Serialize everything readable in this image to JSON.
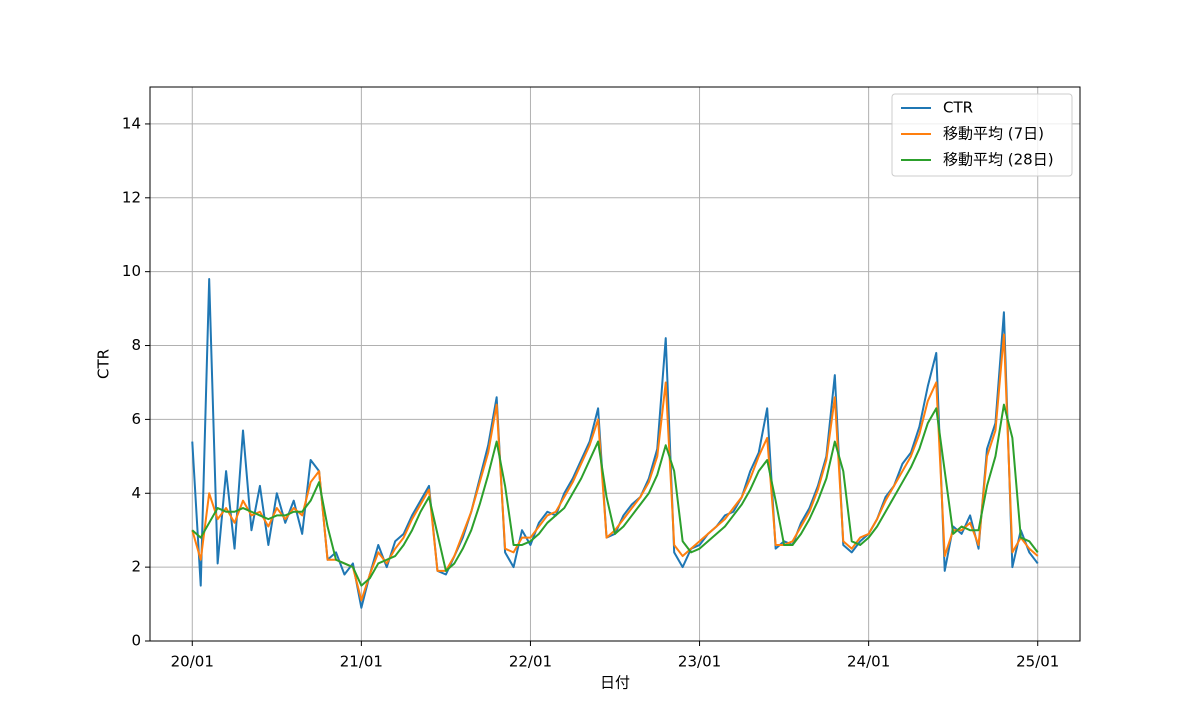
{
  "chart_data": {
    "type": "line",
    "xlabel": "日付",
    "ylabel": "CTR",
    "xlim": [
      2019.75,
      2025.25
    ],
    "ylim": [
      0,
      15
    ],
    "xticks": [
      {
        "value": 2020,
        "label": "20/01"
      },
      {
        "value": 2021,
        "label": "21/01"
      },
      {
        "value": 2022,
        "label": "22/01"
      },
      {
        "value": 2023,
        "label": "23/01"
      },
      {
        "value": 2024,
        "label": "24/01"
      },
      {
        "value": 2025,
        "label": "25/01"
      }
    ],
    "yticks": [
      0,
      2,
      4,
      6,
      8,
      10,
      12,
      14
    ],
    "grid": true,
    "legend": "upper right",
    "x": [
      2020.0,
      2020.05,
      2020.1,
      2020.15,
      2020.2,
      2020.25,
      2020.3,
      2020.35,
      2020.4,
      2020.45,
      2020.5,
      2020.55,
      2020.6,
      2020.65,
      2020.7,
      2020.75,
      2020.8,
      2020.85,
      2020.9,
      2020.95,
      2021.0,
      2021.05,
      2021.1,
      2021.15,
      2021.2,
      2021.25,
      2021.3,
      2021.35,
      2021.4,
      2021.45,
      2021.5,
      2021.55,
      2021.6,
      2021.65,
      2021.7,
      2021.75,
      2021.8,
      2021.85,
      2021.9,
      2021.95,
      2022.0,
      2022.05,
      2022.1,
      2022.15,
      2022.2,
      2022.25,
      2022.3,
      2022.35,
      2022.4,
      2022.45,
      2022.5,
      2022.55,
      2022.6,
      2022.65,
      2022.7,
      2022.75,
      2022.8,
      2022.85,
      2022.9,
      2022.95,
      2023.0,
      2023.05,
      2023.1,
      2023.15,
      2023.2,
      2023.25,
      2023.3,
      2023.35,
      2023.4,
      2023.45,
      2023.5,
      2023.55,
      2023.6,
      2023.65,
      2023.7,
      2023.75,
      2023.8,
      2023.85,
      2023.9,
      2023.95,
      2024.0,
      2024.05,
      2024.1,
      2024.15,
      2024.2,
      2024.25,
      2024.3,
      2024.35,
      2024.4,
      2024.45,
      2024.5,
      2024.55,
      2024.6,
      2024.65,
      2024.7,
      2024.75,
      2024.8,
      2024.85,
      2024.9,
      2024.95,
      2025.0
    ],
    "series": [
      {
        "name": "CTR",
        "color": "#1f77b4",
        "values": [
          5.4,
          1.5,
          9.8,
          2.1,
          4.6,
          2.5,
          5.7,
          3.0,
          4.2,
          2.6,
          4.0,
          3.2,
          3.8,
          2.9,
          4.9,
          4.6,
          2.2,
          2.4,
          1.8,
          2.1,
          0.9,
          1.8,
          2.6,
          2.0,
          2.7,
          2.9,
          3.4,
          3.8,
          4.2,
          1.9,
          1.8,
          2.3,
          2.8,
          3.5,
          4.4,
          5.3,
          6.6,
          2.4,
          2.0,
          3.0,
          2.6,
          3.2,
          3.5,
          3.4,
          4.0,
          4.4,
          4.9,
          5.4,
          6.3,
          2.8,
          2.9,
          3.4,
          3.7,
          3.9,
          4.4,
          5.2,
          8.2,
          2.4,
          2.0,
          2.5,
          2.6,
          2.9,
          3.1,
          3.4,
          3.5,
          3.9,
          4.6,
          5.1,
          6.3,
          2.5,
          2.7,
          2.6,
          3.2,
          3.6,
          4.2,
          5.0,
          7.2,
          2.6,
          2.4,
          2.7,
          2.9,
          3.3,
          3.9,
          4.2,
          4.8,
          5.1,
          5.8,
          6.9,
          7.8,
          1.9,
          3.1,
          2.9,
          3.4,
          2.5,
          5.2,
          5.9,
          8.9,
          2.0,
          3.0,
          2.4,
          2.1
        ]
      },
      {
        "name": "移動平均 (7日)",
        "color": "#ff7f0e",
        "values": [
          3.0,
          2.2,
          4.0,
          3.3,
          3.6,
          3.2,
          3.8,
          3.4,
          3.5,
          3.1,
          3.6,
          3.3,
          3.6,
          3.4,
          4.3,
          4.6,
          2.2,
          2.2,
          2.1,
          2.0,
          1.1,
          1.8,
          2.4,
          2.1,
          2.5,
          2.8,
          3.3,
          3.7,
          4.1,
          1.9,
          1.9,
          2.3,
          2.9,
          3.5,
          4.3,
          5.1,
          6.4,
          2.5,
          2.4,
          2.8,
          2.8,
          3.1,
          3.4,
          3.5,
          3.9,
          4.3,
          4.8,
          5.3,
          6.0,
          2.8,
          3.0,
          3.3,
          3.6,
          3.9,
          4.3,
          5.0,
          7.0,
          2.6,
          2.3,
          2.5,
          2.7,
          2.9,
          3.1,
          3.3,
          3.6,
          3.9,
          4.4,
          5.0,
          5.5,
          2.6,
          2.6,
          2.7,
          3.1,
          3.5,
          4.1,
          4.9,
          6.6,
          2.7,
          2.5,
          2.8,
          2.9,
          3.3,
          3.8,
          4.2,
          4.6,
          5.0,
          5.6,
          6.5,
          7.0,
          2.3,
          3.0,
          3.0,
          3.2,
          2.6,
          5.0,
          5.7,
          8.3,
          2.4,
          2.8,
          2.5,
          2.3
        ]
      },
      {
        "name": "移動平均 (28日)",
        "color": "#2ca02c",
        "values": [
          3.0,
          2.8,
          3.2,
          3.6,
          3.5,
          3.5,
          3.6,
          3.5,
          3.4,
          3.3,
          3.4,
          3.4,
          3.5,
          3.5,
          3.8,
          4.3,
          3.1,
          2.2,
          2.1,
          2.0,
          1.5,
          1.7,
          2.1,
          2.2,
          2.3,
          2.6,
          3.0,
          3.5,
          3.9,
          2.9,
          1.9,
          2.1,
          2.5,
          3.0,
          3.7,
          4.5,
          5.4,
          4.2,
          2.6,
          2.6,
          2.7,
          2.9,
          3.2,
          3.4,
          3.6,
          4.0,
          4.4,
          4.9,
          5.4,
          3.9,
          2.9,
          3.1,
          3.4,
          3.7,
          4.0,
          4.5,
          5.3,
          4.6,
          2.7,
          2.4,
          2.5,
          2.7,
          2.9,
          3.1,
          3.4,
          3.7,
          4.1,
          4.6,
          4.9,
          3.8,
          2.6,
          2.6,
          2.9,
          3.3,
          3.8,
          4.4,
          5.4,
          4.6,
          2.7,
          2.6,
          2.8,
          3.1,
          3.5,
          3.9,
          4.3,
          4.7,
          5.2,
          5.9,
          6.3,
          4.6,
          2.9,
          3.1,
          3.0,
          3.0,
          4.2,
          5.0,
          6.4,
          5.5,
          2.8,
          2.7,
          2.4
        ]
      }
    ]
  }
}
